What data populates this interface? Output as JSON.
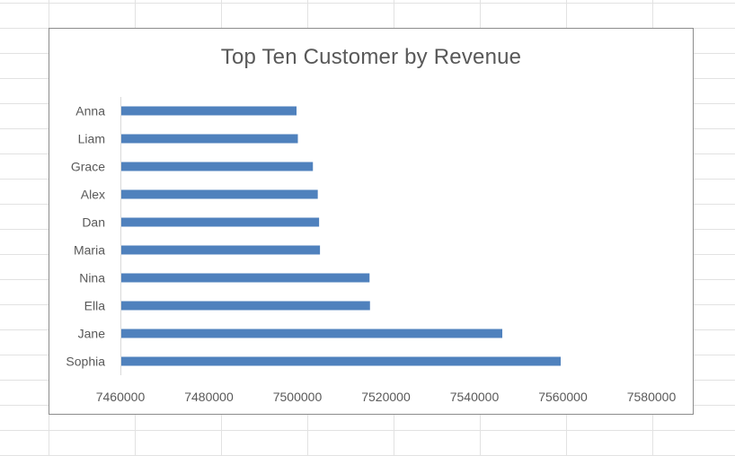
{
  "chart_data": {
    "type": "bar",
    "orientation": "horizontal",
    "title": "Top Ten Customer by Revenue",
    "xlabel": "",
    "ylabel": "",
    "categories": [
      "Anna",
      "Liam",
      "Grace",
      "Alex",
      "Dan",
      "Maria",
      "Nina",
      "Ella",
      "Jane",
      "Sophia"
    ],
    "values": [
      7499800,
      7500100,
      7503500,
      7504600,
      7504900,
      7505100,
      7516300,
      7516400,
      7546300,
      7559500
    ],
    "xlim": [
      7460000,
      7580000
    ],
    "xticks": [
      7460000,
      7480000,
      7500000,
      7520000,
      7540000,
      7560000,
      7580000
    ],
    "grid": false,
    "legend": "none",
    "bar_color": "#4f81bd",
    "axis_color": "#d9d9d9"
  }
}
